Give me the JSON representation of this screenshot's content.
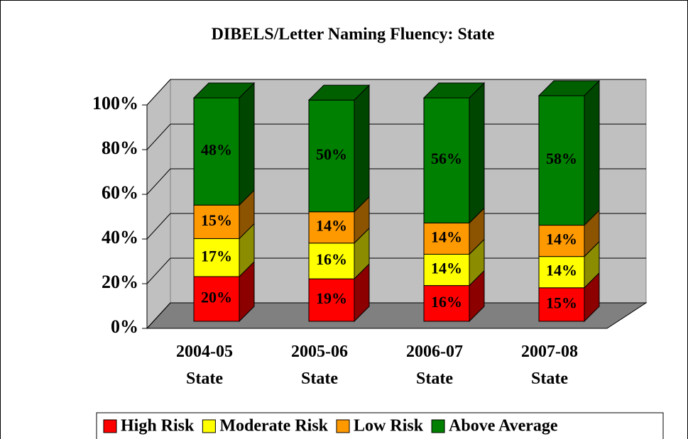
{
  "chart_data": {
    "type": "bar",
    "stacked": true,
    "title": "DIBELS/Letter Naming Fluency: State",
    "categories": [
      "2004-05 State",
      "2005-06 State",
      "2006-07 State",
      "2007-08 State"
    ],
    "series": [
      {
        "name": "High Risk",
        "color": "#ff0000",
        "values": [
          20,
          19,
          16,
          15
        ],
        "value_labels": [
          "20%",
          "19%",
          "16%",
          "15%"
        ]
      },
      {
        "name": "Moderate Risk",
        "color": "#ffff00",
        "values": [
          17,
          16,
          14,
          14
        ],
        "value_labels": [
          "17%",
          "16%",
          "14%",
          "14%"
        ]
      },
      {
        "name": "Low Risk",
        "color": "#ff9900",
        "values": [
          15,
          14,
          14,
          14
        ],
        "value_labels": [
          "15%",
          "14%",
          "14%",
          "14%"
        ]
      },
      {
        "name": "Above Average",
        "color": "#008000",
        "values": [
          48,
          50,
          56,
          58
        ],
        "value_labels": [
          "48%",
          "50%",
          "56%",
          "58%"
        ]
      }
    ],
    "ylim": [
      0,
      100
    ],
    "yticks": [
      {
        "value": 0,
        "label": "0%"
      },
      {
        "value": 20,
        "label": "20%"
      },
      {
        "value": 40,
        "label": "40%"
      },
      {
        "value": 60,
        "label": "60%"
      },
      {
        "value": 80,
        "label": "80%"
      },
      {
        "value": 100,
        "label": "100%"
      }
    ],
    "grid": true,
    "legend": "bottom"
  }
}
